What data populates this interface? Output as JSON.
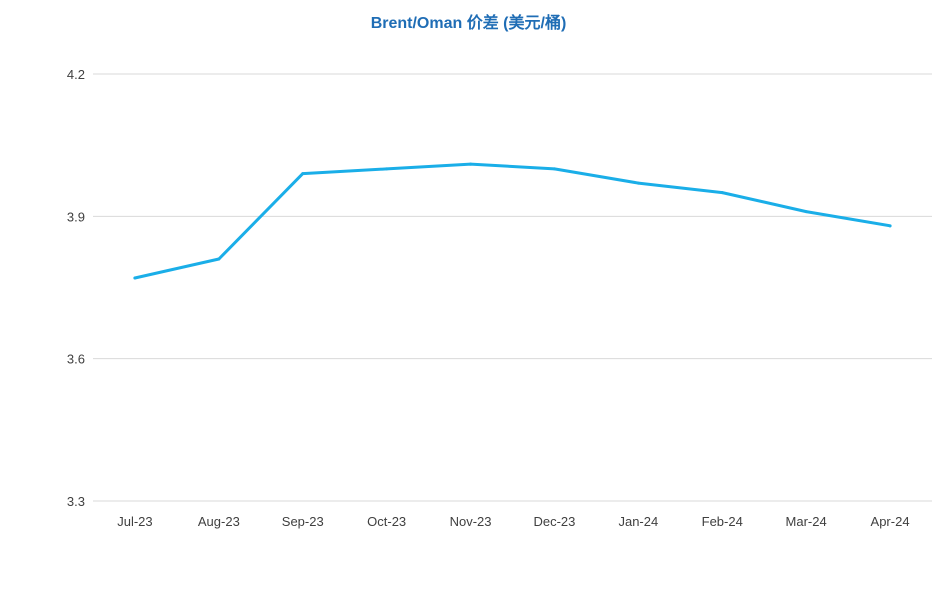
{
  "chart_data": {
    "type": "line",
    "title": "Brent/Oman 价差 (美元/桶)",
    "categories": [
      "Jul-23",
      "Aug-23",
      "Sep-23",
      "Oct-23",
      "Nov-23",
      "Dec-23",
      "Jan-24",
      "Feb-24",
      "Mar-24",
      "Apr-24"
    ],
    "series": [
      {
        "values": [
          3.77,
          3.81,
          3.99,
          4.0,
          4.01,
          4.0,
          3.97,
          3.95,
          3.91,
          3.88
        ],
        "color": "#1aaee8"
      }
    ],
    "ylim": [
      3.3,
      4.2
    ],
    "yticks": [
      "3.3",
      "3.6",
      "3.9",
      "4.2"
    ],
    "xlabel": "",
    "ylabel": "",
    "grid": true,
    "legend": "none"
  }
}
